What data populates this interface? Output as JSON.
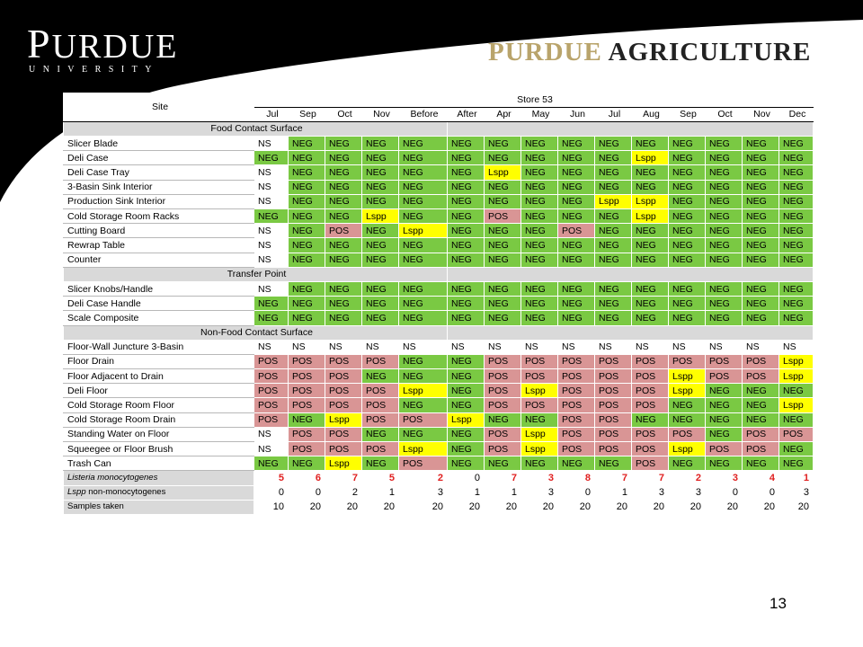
{
  "header": {
    "logo_left_word": "PURDUE",
    "logo_left_sub": "UNIVERSITY",
    "logo_right_part1": "PURDUE",
    "logo_right_part2": "AGRICULTURE"
  },
  "table": {
    "site_label": "Site",
    "store_label": "Store 53",
    "months": [
      "Jul",
      "Sep",
      "Oct",
      "Nov",
      "Before",
      "After",
      "Apr",
      "May",
      "Jun",
      "Jul",
      "Aug",
      "Sep",
      "Oct",
      "Nov",
      "Dec"
    ],
    "sections": [
      {
        "title": "Food Contact Surface",
        "rows": [
          {
            "site": "Slicer Blade",
            "values": [
              "NS",
              "NEG",
              "NEG",
              "NEG",
              "NEG",
              "NEG",
              "NEG",
              "NEG",
              "NEG",
              "NEG",
              "NEG",
              "NEG",
              "NEG",
              "NEG",
              "NEG"
            ]
          },
          {
            "site": "Deli Case",
            "values": [
              "NEG",
              "NEG",
              "NEG",
              "NEG",
              "NEG",
              "NEG",
              "NEG",
              "NEG",
              "NEG",
              "NEG",
              "Lspp",
              "NEG",
              "NEG",
              "NEG",
              "NEG"
            ]
          },
          {
            "site": "Deli Case Tray",
            "values": [
              "NS",
              "NEG",
              "NEG",
              "NEG",
              "NEG",
              "NEG",
              "Lspp",
              "NEG",
              "NEG",
              "NEG",
              "NEG",
              "NEG",
              "NEG",
              "NEG",
              "NEG"
            ]
          },
          {
            "site": "3-Basin Sink Interior",
            "values": [
              "NS",
              "NEG",
              "NEG",
              "NEG",
              "NEG",
              "NEG",
              "NEG",
              "NEG",
              "NEG",
              "NEG",
              "NEG",
              "NEG",
              "NEG",
              "NEG",
              "NEG"
            ]
          },
          {
            "site": "Production Sink Interior",
            "values": [
              "NS",
              "NEG",
              "NEG",
              "NEG",
              "NEG",
              "NEG",
              "NEG",
              "NEG",
              "NEG",
              "Lspp",
              "Lspp",
              "NEG",
              "NEG",
              "NEG",
              "NEG"
            ]
          },
          {
            "site": "Cold Storage Room Racks",
            "values": [
              "NEG",
              "NEG",
              "NEG",
              "Lspp",
              "NEG",
              "NEG",
              "POS",
              "NEG",
              "NEG",
              "NEG",
              "Lspp",
              "NEG",
              "NEG",
              "NEG",
              "NEG"
            ]
          },
          {
            "site": "Cutting Board",
            "values": [
              "NS",
              "NEG",
              "POS",
              "NEG",
              "Lspp",
              "NEG",
              "NEG",
              "NEG",
              "POS",
              "NEG",
              "NEG",
              "NEG",
              "NEG",
              "NEG",
              "NEG"
            ]
          },
          {
            "site": "Rewrap Table",
            "values": [
              "NS",
              "NEG",
              "NEG",
              "NEG",
              "NEG",
              "NEG",
              "NEG",
              "NEG",
              "NEG",
              "NEG",
              "NEG",
              "NEG",
              "NEG",
              "NEG",
              "NEG"
            ]
          },
          {
            "site": "Counter",
            "values": [
              "NS",
              "NEG",
              "NEG",
              "NEG",
              "NEG",
              "NEG",
              "NEG",
              "NEG",
              "NEG",
              "NEG",
              "NEG",
              "NEG",
              "NEG",
              "NEG",
              "NEG"
            ]
          }
        ]
      },
      {
        "title": "Transfer Point",
        "rows": [
          {
            "site": "Slicer Knobs/Handle",
            "values": [
              "NS",
              "NEG",
              "NEG",
              "NEG",
              "NEG",
              "NEG",
              "NEG",
              "NEG",
              "NEG",
              "NEG",
              "NEG",
              "NEG",
              "NEG",
              "NEG",
              "NEG"
            ]
          },
          {
            "site": "Deli Case Handle",
            "values": [
              "NEG",
              "NEG",
              "NEG",
              "NEG",
              "NEG",
              "NEG",
              "NEG",
              "NEG",
              "NEG",
              "NEG",
              "NEG",
              "NEG",
              "NEG",
              "NEG",
              "NEG"
            ]
          },
          {
            "site": "Scale Composite",
            "values": [
              "NEG",
              "NEG",
              "NEG",
              "NEG",
              "NEG",
              "NEG",
              "NEG",
              "NEG",
              "NEG",
              "NEG",
              "NEG",
              "NEG",
              "NEG",
              "NEG",
              "NEG"
            ]
          }
        ]
      },
      {
        "title": "Non-Food Contact Surface",
        "rows": [
          {
            "site": "Floor-Wall Juncture 3-Basin",
            "values": [
              "NS",
              "NS",
              "NS",
              "NS",
              "NS",
              "NS",
              "NS",
              "NS",
              "NS",
              "NS",
              "NS",
              "NS",
              "NS",
              "NS",
              "NS"
            ]
          },
          {
            "site": "Floor Drain",
            "values": [
              "POS",
              "POS",
              "POS",
              "POS",
              "NEG",
              "NEG",
              "POS",
              "POS",
              "POS",
              "POS",
              "POS",
              "POS",
              "POS",
              "POS",
              "Lspp"
            ]
          },
          {
            "site": "Floor Adjacent to Drain",
            "values": [
              "POS",
              "POS",
              "POS",
              "NEG",
              "NEG",
              "NEG",
              "POS",
              "POS",
              "POS",
              "POS",
              "POS",
              "Lspp",
              "POS",
              "POS",
              "Lspp"
            ]
          },
          {
            "site": "Deli Floor",
            "values": [
              "POS",
              "POS",
              "POS",
              "POS",
              "Lspp",
              "NEG",
              "POS",
              "Lspp",
              "POS",
              "POS",
              "POS",
              "Lspp",
              "NEG",
              "NEG",
              "NEG"
            ]
          },
          {
            "site": "Cold Storage Room Floor",
            "values": [
              "POS",
              "POS",
              "POS",
              "POS",
              "NEG",
              "NEG",
              "POS",
              "POS",
              "POS",
              "POS",
              "POS",
              "NEG",
              "NEG",
              "NEG",
              "Lspp"
            ]
          },
          {
            "site": "Cold Storage Room Drain",
            "values": [
              "POS",
              "NEG",
              "Lspp",
              "POS",
              "POS",
              "Lspp",
              "NEG",
              "NEG",
              "POS",
              "POS",
              "NEG",
              "NEG",
              "NEG",
              "NEG",
              "NEG"
            ]
          },
          {
            "site": "Standing Water on Floor",
            "values": [
              "NS",
              "POS",
              "POS",
              "NEG",
              "NEG",
              "NEG",
              "POS",
              "Lspp",
              "POS",
              "POS",
              "POS",
              "POS",
              "NEG",
              "POS",
              "POS"
            ]
          },
          {
            "site": "Squeegee or Floor Brush",
            "values": [
              "NS",
              "POS",
              "POS",
              "POS",
              "Lspp",
              "NEG",
              "POS",
              "Lspp",
              "POS",
              "POS",
              "POS",
              "Lspp",
              "POS",
              "POS",
              "NEG"
            ]
          },
          {
            "site": "Trash Can",
            "values": [
              "NEG",
              "NEG",
              "Lspp",
              "NEG",
              "POS",
              "NEG",
              "NEG",
              "NEG",
              "NEG",
              "NEG",
              "POS",
              "NEG",
              "NEG",
              "NEG",
              "NEG"
            ]
          }
        ]
      }
    ],
    "summary": [
      {
        "label": "Listeria monocytogenes",
        "italic": true,
        "red": true,
        "values": [
          "5",
          "6",
          "7",
          "5",
          "2",
          "0",
          "7",
          "3",
          "8",
          "7",
          "7",
          "2",
          "3",
          "4",
          "1"
        ]
      },
      {
        "label": "Lspp non-monocytogenes",
        "italic_prefix": "Lspp",
        "label_rest": " non-monocytogenes",
        "red": false,
        "values": [
          "0",
          "0",
          "2",
          "1",
          "3",
          "1",
          "1",
          "3",
          "0",
          "1",
          "3",
          "3",
          "0",
          "0",
          "3"
        ]
      },
      {
        "label": "Samples taken",
        "red": false,
        "values": [
          "10",
          "20",
          "20",
          "20",
          "20",
          "20",
          "20",
          "20",
          "20",
          "20",
          "20",
          "20",
          "20",
          "20",
          "20"
        ]
      }
    ]
  },
  "page_number": "13",
  "colors": {
    "neg": "#7ac943",
    "pos": "#d99595",
    "lspp": "#ffff00",
    "ns": "#ffffff",
    "section": "#d9d9d9",
    "red_text": "#e02020"
  }
}
